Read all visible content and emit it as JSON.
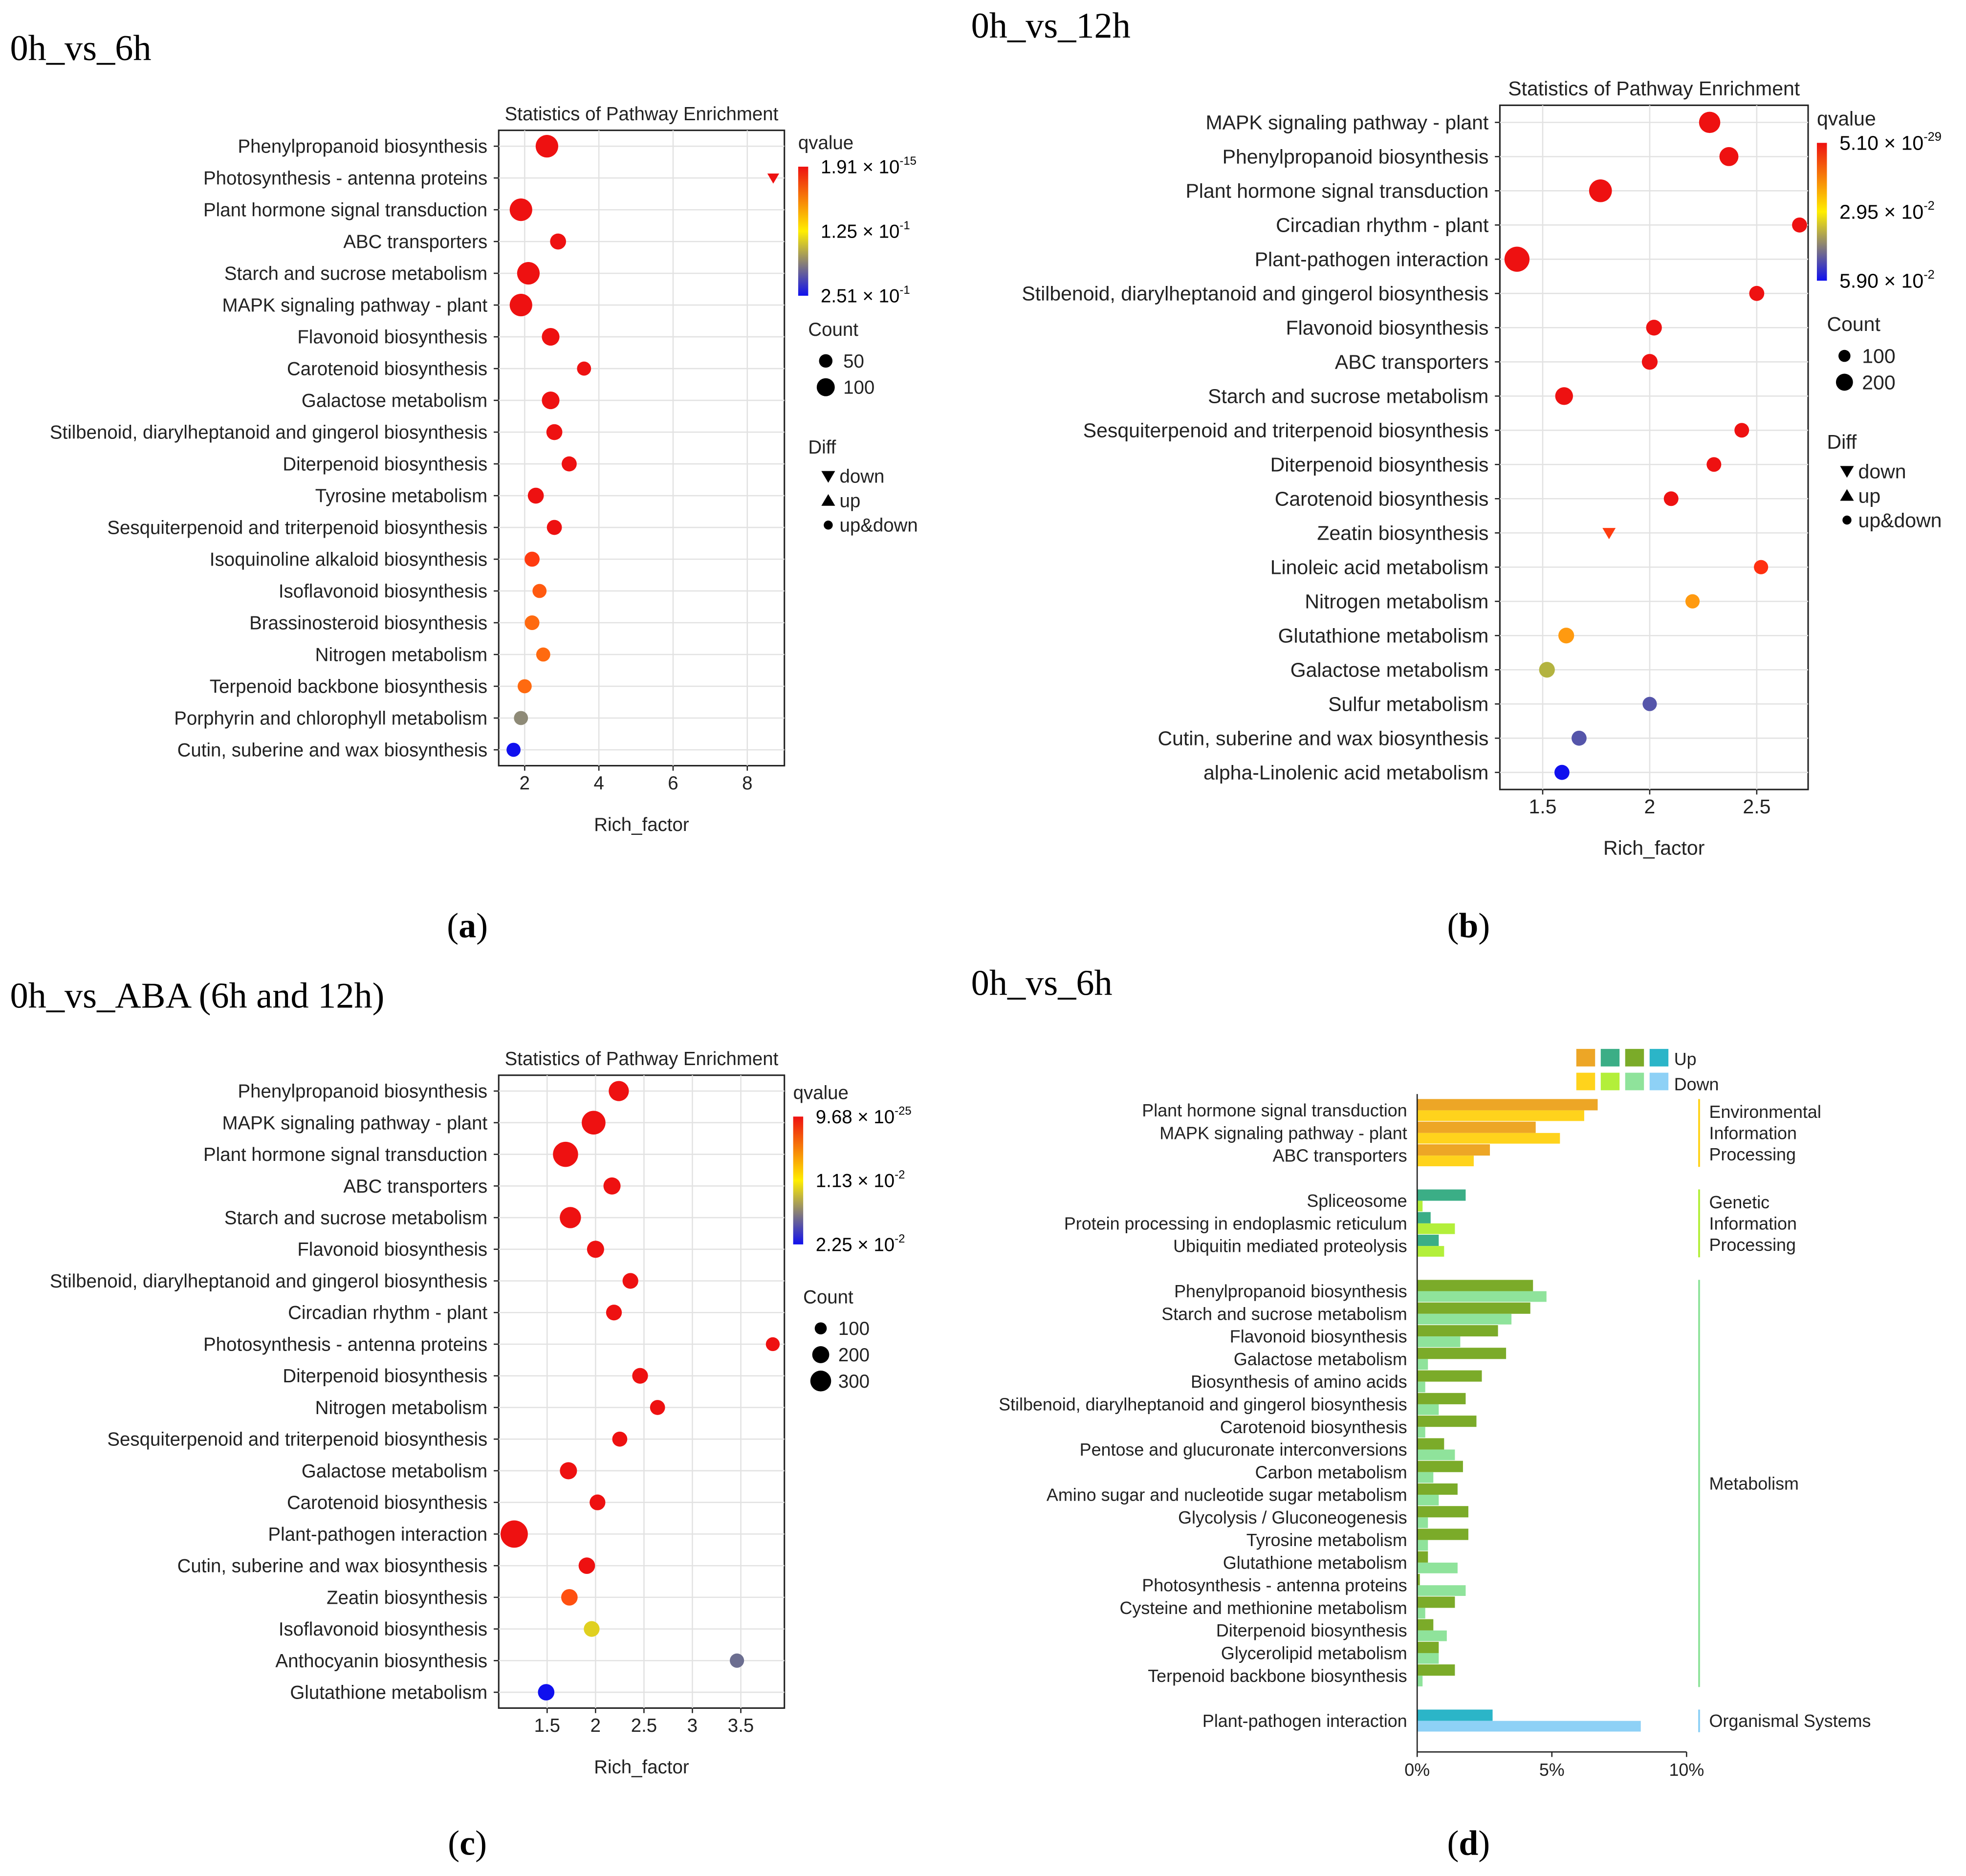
{
  "panels": {
    "a": {
      "heading": "0h_vs_6h",
      "caption_letter": "a"
    },
    "b": {
      "heading": "0h_vs_12h",
      "caption_letter": "b"
    },
    "c": {
      "heading": "0h_vs_ABA (6h and 12h)",
      "caption_letter": "c"
    },
    "d": {
      "heading": "0h_vs_6h",
      "caption_letter": "d"
    }
  },
  "chart_data": [
    {
      "id": "a",
      "type": "scatter",
      "title": "Statistics of Pathway Enrichment",
      "xlabel": "Rich_factor",
      "xlim": [
        1.3,
        9.0
      ],
      "xticks": [
        2,
        4,
        6,
        8
      ],
      "xtick_labels": [
        "2",
        "4",
        "6",
        "8"
      ],
      "qvalue_legend": {
        "title": "qvalue",
        "labels": [
          "1.91 × 10^-15",
          "1.25 × 10^-1",
          "2.51 × 10^-1"
        ]
      },
      "count_legend": {
        "title": "Count",
        "labels": [
          "50",
          "100"
        ],
        "values": [
          50,
          100
        ]
      },
      "diff_legend": {
        "title": "Diff",
        "labels": [
          "down",
          "up",
          "up&down"
        ]
      },
      "points": [
        {
          "pathway": "Phenylpropanoid biosynthesis",
          "rich_factor": 2.6,
          "count": 110,
          "color": "#ee1111",
          "diff": "up&down"
        },
        {
          "pathway": "Photosynthesis - antenna proteins",
          "rich_factor": 8.7,
          "count": 15,
          "color": "#ee1111",
          "diff": "down"
        },
        {
          "pathway": "Plant hormone signal transduction",
          "rich_factor": 1.9,
          "count": 125,
          "color": "#ee1111",
          "diff": "up&down"
        },
        {
          "pathway": "ABC transporters",
          "rich_factor": 2.9,
          "count": 45,
          "color": "#ee1111",
          "diff": "up&down"
        },
        {
          "pathway": "Starch and sucrose metabolism",
          "rich_factor": 2.1,
          "count": 90,
          "color": "#ee1111",
          "diff": "up&down"
        },
        {
          "pathway": "MAPK signaling pathway - plant",
          "rich_factor": 1.9,
          "count": 110,
          "color": "#ee1111",
          "diff": "up&down"
        },
        {
          "pathway": "Flavonoid biosynthesis",
          "rich_factor": 2.7,
          "count": 55,
          "color": "#ee1111",
          "diff": "up&down"
        },
        {
          "pathway": "Carotenoid biosynthesis",
          "rich_factor": 3.6,
          "count": 35,
          "color": "#ee1111",
          "diff": "up&down"
        },
        {
          "pathway": "Galactose metabolism",
          "rich_factor": 2.7,
          "count": 55,
          "color": "#ee1111",
          "diff": "up&down"
        },
        {
          "pathway": "Stilbenoid, diarylheptanoid and gingerol biosynthesis",
          "rich_factor": 2.8,
          "count": 45,
          "color": "#ee1111",
          "diff": "up&down"
        },
        {
          "pathway": "Diterpenoid biosynthesis",
          "rich_factor": 3.2,
          "count": 40,
          "color": "#ee1111",
          "diff": "up&down"
        },
        {
          "pathway": "Tyrosine metabolism",
          "rich_factor": 2.3,
          "count": 45,
          "color": "#ee1111",
          "diff": "up&down"
        },
        {
          "pathway": "Sesquiterpenoid and triterpenoid biosynthesis",
          "rich_factor": 2.8,
          "count": 40,
          "color": "#ee1111",
          "diff": "up&down"
        },
        {
          "pathway": "Isoquinoline alkaloid biosynthesis",
          "rich_factor": 2.2,
          "count": 40,
          "color": "#ff3b10",
          "diff": "up&down"
        },
        {
          "pathway": "Isoflavonoid biosynthesis",
          "rich_factor": 2.4,
          "count": 35,
          "color": "#ff5a10",
          "diff": "up&down"
        },
        {
          "pathway": "Brassinosteroid biosynthesis",
          "rich_factor": 2.2,
          "count": 38,
          "color": "#ff6a10",
          "diff": "up&down"
        },
        {
          "pathway": "Nitrogen metabolism",
          "rich_factor": 2.5,
          "count": 35,
          "color": "#ff6a10",
          "diff": "up&down"
        },
        {
          "pathway": "Terpenoid backbone biosynthesis",
          "rich_factor": 2.0,
          "count": 35,
          "color": "#ff6a10",
          "diff": "up&down"
        },
        {
          "pathway": "Porphyrin and chlorophyll metabolism",
          "rich_factor": 1.9,
          "count": 35,
          "color": "#8e8a77",
          "diff": "up&down"
        },
        {
          "pathway": "Cutin, suberine and wax biosynthesis",
          "rich_factor": 1.7,
          "count": 35,
          "color": "#1010ee",
          "diff": "up&down"
        }
      ]
    },
    {
      "id": "b",
      "type": "scatter",
      "title": "Statistics of Pathway Enrichment",
      "xlabel": "Rich_factor",
      "xlim": [
        1.3,
        2.74
      ],
      "xticks": [
        1.5,
        2.0,
        2.5
      ],
      "xtick_labels": [
        "1.5",
        "2",
        "2.5"
      ],
      "qvalue_legend": {
        "title": "qvalue",
        "labels": [
          "5.10 × 10^-29",
          "2.95 × 10^-2",
          "5.90 × 10^-2"
        ]
      },
      "count_legend": {
        "title": "Count",
        "labels": [
          "100",
          "200"
        ],
        "values": [
          100,
          200
        ]
      },
      "diff_legend": {
        "title": "Diff",
        "labels": [
          "down",
          "up",
          "up&down"
        ]
      },
      "points": [
        {
          "pathway": "MAPK signaling pathway - plant",
          "rich_factor": 2.28,
          "count": 200,
          "color": "#ee1111",
          "diff": "up&down"
        },
        {
          "pathway": "Phenylpropanoid biosynthesis",
          "rich_factor": 2.37,
          "count": 160,
          "color": "#ee1111",
          "diff": "up&down"
        },
        {
          "pathway": "Plant hormone signal transduction",
          "rich_factor": 1.77,
          "count": 230,
          "color": "#ee1111",
          "diff": "up&down"
        },
        {
          "pathway": "Circadian rhythm - plant",
          "rich_factor": 2.7,
          "count": 100,
          "color": "#ee1111",
          "diff": "up&down"
        },
        {
          "pathway": "Plant-pathogen interaction",
          "rich_factor": 1.38,
          "count": 290,
          "color": "#ee1111",
          "diff": "up&down"
        },
        {
          "pathway": "Stilbenoid, diarylheptanoid and gingerol biosynthesis",
          "rich_factor": 2.5,
          "count": 100,
          "color": "#ee1111",
          "diff": "up&down"
        },
        {
          "pathway": "Flavonoid biosynthesis",
          "rich_factor": 2.02,
          "count": 110,
          "color": "#ee1111",
          "diff": "up&down"
        },
        {
          "pathway": "ABC transporters",
          "rich_factor": 2.0,
          "count": 110,
          "color": "#ee1111",
          "diff": "up&down"
        },
        {
          "pathway": "Starch and sucrose metabolism",
          "rich_factor": 1.6,
          "count": 140,
          "color": "#ee1111",
          "diff": "up&down"
        },
        {
          "pathway": "Sesquiterpenoid and triterpenoid biosynthesis",
          "rich_factor": 2.43,
          "count": 95,
          "color": "#ee1111",
          "diff": "up&down"
        },
        {
          "pathway": "Diterpenoid biosynthesis",
          "rich_factor": 2.3,
          "count": 95,
          "color": "#ee1111",
          "diff": "up&down"
        },
        {
          "pathway": "Carotenoid biosynthesis",
          "rich_factor": 2.1,
          "count": 95,
          "color": "#ee1111",
          "diff": "up&down"
        },
        {
          "pathway": "Zeatin biosynthesis",
          "rich_factor": 1.81,
          "count": 70,
          "color": "#ff3c10",
          "diff": "down"
        },
        {
          "pathway": "Linoleic acid metabolism",
          "rich_factor": 2.52,
          "count": 90,
          "color": "#ff3010",
          "diff": "up&down"
        },
        {
          "pathway": "Nitrogen metabolism",
          "rich_factor": 2.2,
          "count": 90,
          "color": "#ff9a10",
          "diff": "up&down"
        },
        {
          "pathway": "Glutathione metabolism",
          "rich_factor": 1.61,
          "count": 110,
          "color": "#ff9a10",
          "diff": "up&down"
        },
        {
          "pathway": "Galactose metabolism",
          "rich_factor": 1.52,
          "count": 110,
          "color": "#b3b340",
          "diff": "up&down"
        },
        {
          "pathway": "Sulfur metabolism",
          "rich_factor": 2.0,
          "count": 90,
          "color": "#5555aa",
          "diff": "up&down"
        },
        {
          "pathway": "Cutin, suberine and wax biosynthesis",
          "rich_factor": 1.67,
          "count": 100,
          "color": "#5555aa",
          "diff": "up&down"
        },
        {
          "pathway": "alpha-Linolenic acid metabolism",
          "rich_factor": 1.59,
          "count": 100,
          "color": "#1010ee",
          "diff": "up&down"
        }
      ]
    },
    {
      "id": "c",
      "type": "scatter",
      "title": "Statistics of Pathway Enrichment",
      "xlabel": "Rich_factor",
      "xlim": [
        1.0,
        3.95
      ],
      "xticks": [
        1.5,
        2.0,
        2.5,
        3.0,
        3.5
      ],
      "xtick_labels": [
        "1.5",
        "2",
        "2.5",
        "3",
        "3.5"
      ],
      "qvalue_legend": {
        "title": "qvalue",
        "labels": [
          "9.68 × 10^-25",
          "1.13 × 10^-2",
          "2.25 × 10^-2"
        ]
      },
      "count_legend": {
        "title": "Count",
        "labels": [
          "100",
          "200",
          "300"
        ],
        "values": [
          100,
          200,
          300
        ]
      },
      "points": [
        {
          "pathway": "Phenylpropanoid biosynthesis",
          "rich_factor": 2.24,
          "count": 180,
          "color": "#ee1111"
        },
        {
          "pathway": "MAPK signaling pathway - plant",
          "rich_factor": 1.98,
          "count": 250,
          "color": "#ee1111"
        },
        {
          "pathway": "Plant hormone signal transduction",
          "rich_factor": 1.69,
          "count": 280,
          "color": "#ee1111"
        },
        {
          "pathway": "ABC transporters",
          "rich_factor": 2.17,
          "count": 130,
          "color": "#ee1111"
        },
        {
          "pathway": "Starch and sucrose metabolism",
          "rich_factor": 1.74,
          "count": 200,
          "color": "#ee1111"
        },
        {
          "pathway": "Flavonoid biosynthesis",
          "rich_factor": 2.0,
          "count": 130,
          "color": "#ee1111"
        },
        {
          "pathway": "Stilbenoid, diarylheptanoid and gingerol biosynthesis",
          "rich_factor": 2.36,
          "count": 110,
          "color": "#ee1111"
        },
        {
          "pathway": "Circadian rhythm - plant",
          "rich_factor": 2.19,
          "count": 110,
          "color": "#ee1111"
        },
        {
          "pathway": "Photosynthesis - antenna proteins",
          "rich_factor": 3.83,
          "count": 85,
          "color": "#ee1111"
        },
        {
          "pathway": "Diterpenoid biosynthesis",
          "rich_factor": 2.46,
          "count": 110,
          "color": "#ee1111"
        },
        {
          "pathway": "Nitrogen metabolism",
          "rich_factor": 2.64,
          "count": 100,
          "color": "#ee1111"
        },
        {
          "pathway": "Sesquiterpenoid and triterpenoid biosynthesis",
          "rich_factor": 2.25,
          "count": 100,
          "color": "#ee1111"
        },
        {
          "pathway": "Galactose metabolism",
          "rich_factor": 1.72,
          "count": 130,
          "color": "#ee1111"
        },
        {
          "pathway": "Carotenoid biosynthesis",
          "rich_factor": 2.02,
          "count": 110,
          "color": "#ee1111"
        },
        {
          "pathway": "Plant-pathogen interaction",
          "rich_factor": 1.16,
          "count": 330,
          "color": "#ee1111"
        },
        {
          "pathway": "Cutin, suberine and wax biosynthesis",
          "rich_factor": 1.91,
          "count": 120,
          "color": "#ee1111"
        },
        {
          "pathway": "Zeatin biosynthesis",
          "rich_factor": 1.73,
          "count": 120,
          "color": "#ff5010"
        },
        {
          "pathway": "Isoflavonoid biosynthesis",
          "rich_factor": 1.96,
          "count": 110,
          "color": "#e0d020"
        },
        {
          "pathway": "Anthocyanin biosynthesis",
          "rich_factor": 3.46,
          "count": 90,
          "color": "#6c6e90"
        },
        {
          "pathway": "Glutathione metabolism",
          "rich_factor": 1.49,
          "count": 120,
          "color": "#1010ee"
        }
      ]
    },
    {
      "id": "d",
      "type": "bar",
      "orientation": "horizontal",
      "xlabel": "",
      "xlim": [
        0,
        10
      ],
      "xticks": [
        0,
        5,
        10
      ],
      "xtick_labels": [
        "0%",
        "5%",
        "10%"
      ],
      "legend": {
        "up_label": "Up",
        "down_label": "Down",
        "up_colors": [
          "#eda626",
          "#3bae86",
          "#7bab29",
          "#2bb5c8"
        ],
        "down_colors": [
          "#ffd31c",
          "#b3ef3a",
          "#8fe39b",
          "#8ed1f6"
        ]
      },
      "groups": [
        {
          "name": "Environmental Information Processing",
          "label_lines": [
            "Environmental",
            "Information",
            "Processing"
          ],
          "line_color": "#ffd31c",
          "up_color": "#eda626",
          "down_color": "#ffd31c",
          "items": [
            {
              "pathway": "Plant hormone signal transduction",
              "up": 6.7,
              "down": 6.2
            },
            {
              "pathway": "MAPK signaling pathway - plant",
              "up": 4.4,
              "down": 5.3
            },
            {
              "pathway": "ABC transporters",
              "up": 2.7,
              "down": 2.1
            }
          ]
        },
        {
          "name": "Genetic Information Processing",
          "label_lines": [
            "Genetic",
            "Information",
            "Processing"
          ],
          "line_color": "#b3ef3a",
          "up_color": "#3bae86",
          "down_color": "#b3ef3a",
          "items": [
            {
              "pathway": "Spliceosome",
              "up": 1.8,
              "down": 0.2
            },
            {
              "pathway": "Protein processing in endoplasmic reticulum",
              "up": 0.5,
              "down": 1.4
            },
            {
              "pathway": "Ubiquitin mediated proteolysis",
              "up": 0.8,
              "down": 1.0
            }
          ]
        },
        {
          "name": "Metabolism",
          "label_lines": [
            "Metabolism"
          ],
          "line_color": "#8fe39b",
          "up_color": "#7bab29",
          "down_color": "#8fe39b",
          "items": [
            {
              "pathway": "Phenylpropanoid biosynthesis",
              "up": 4.3,
              "down": 4.8
            },
            {
              "pathway": "Starch and sucrose metabolism",
              "up": 4.2,
              "down": 3.5
            },
            {
              "pathway": "Flavonoid biosynthesis",
              "up": 3.0,
              "down": 1.6
            },
            {
              "pathway": "Galactose metabolism",
              "up": 3.3,
              "down": 0.4
            },
            {
              "pathway": "Biosynthesis of amino acids",
              "up": 2.4,
              "down": 0.3
            },
            {
              "pathway": "Stilbenoid, diarylheptanoid and gingerol biosynthesis",
              "up": 1.8,
              "down": 0.8
            },
            {
              "pathway": "Carotenoid biosynthesis",
              "up": 2.2,
              "down": 0.3
            },
            {
              "pathway": "Pentose and glucuronate interconversions",
              "up": 1.0,
              "down": 1.4
            },
            {
              "pathway": "Carbon metabolism",
              "up": 1.7,
              "down": 0.6
            },
            {
              "pathway": "Amino sugar and nucleotide sugar metabolism",
              "up": 1.5,
              "down": 0.8
            },
            {
              "pathway": "Glycolysis / Gluconeogenesis",
              "up": 1.9,
              "down": 0.4
            },
            {
              "pathway": "Tyrosine metabolism",
              "up": 1.9,
              "down": 0.4
            },
            {
              "pathway": "Glutathione metabolism",
              "up": 0.4,
              "down": 1.5
            },
            {
              "pathway": "Photosynthesis - antenna proteins",
              "up": 0.1,
              "down": 1.8
            },
            {
              "pathway": "Cysteine and methionine metabolism",
              "up": 1.4,
              "down": 0.3
            },
            {
              "pathway": "Diterpenoid biosynthesis",
              "up": 0.6,
              "down": 1.1
            },
            {
              "pathway": "Glycerolipid metabolism",
              "up": 0.8,
              "down": 0.8
            },
            {
              "pathway": "Terpenoid backbone biosynthesis",
              "up": 1.4,
              "down": 0.2
            }
          ]
        },
        {
          "name": "Organismal Systems",
          "label_lines": [
            "Organismal Systems"
          ],
          "line_color": "#8ed1f6",
          "up_color": "#2bb5c8",
          "down_color": "#8ed1f6",
          "items": [
            {
              "pathway": "Plant-pathogen interaction",
              "up": 2.8,
              "down": 8.3
            }
          ]
        }
      ]
    }
  ]
}
